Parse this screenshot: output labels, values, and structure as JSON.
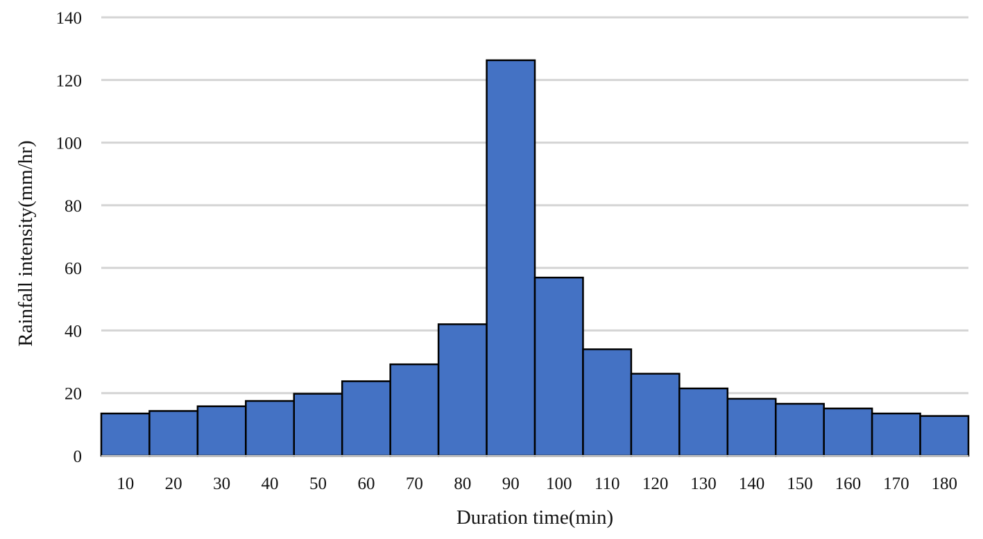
{
  "chart_data": {
    "type": "bar",
    "xlabel": "Duration time(min)",
    "ylabel": "Rainfall intensity(mm/hr)",
    "ylim": [
      0,
      140
    ],
    "yticks": [
      0,
      20,
      40,
      60,
      80,
      100,
      120,
      140
    ],
    "grid": true,
    "categories": [
      "10",
      "20",
      "30",
      "40",
      "50",
      "60",
      "70",
      "80",
      "90",
      "100",
      "110",
      "120",
      "130",
      "140",
      "150",
      "160",
      "170",
      "180"
    ],
    "series": [
      {
        "values": [
          13.5,
          14.3,
          15.8,
          17.5,
          19.8,
          23.8,
          29.2,
          42.0,
          126.3,
          56.9,
          34.0,
          26.2,
          21.5,
          18.2,
          16.6,
          15.1,
          13.5,
          12.7
        ]
      }
    ],
    "bar_color": "#4472c4",
    "bar_outline_color": "#000000",
    "grid_color": "#d4d4d4"
  }
}
